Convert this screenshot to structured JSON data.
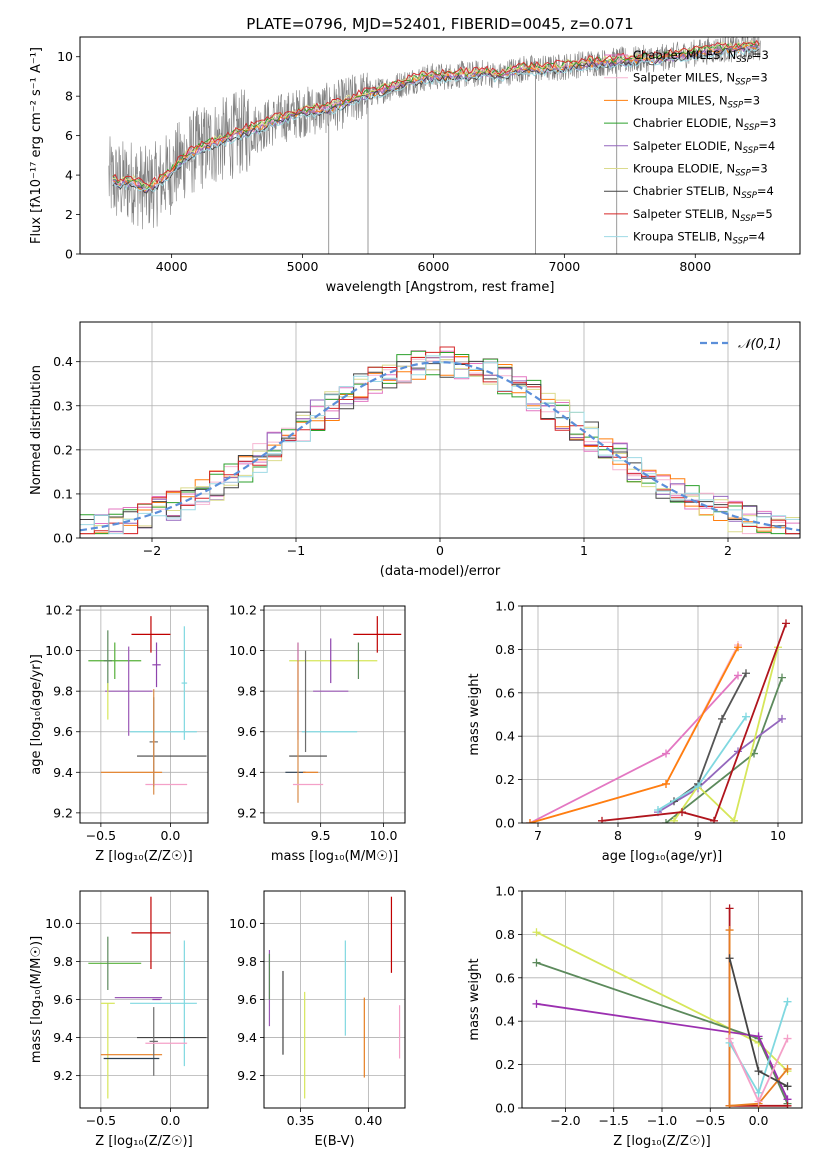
{
  "title": "PLATE=0796, MJD=52401, FIBERID=0045, z=0.071",
  "chart_data": [
    {
      "id": "spectrum",
      "type": "line",
      "xlabel": "wavelength [Angstrom, rest frame]",
      "ylabel": "Flux [fλ10⁻¹⁷ erg cm⁻² s⁻¹ A⁻¹]",
      "xlim": [
        3300,
        8800
      ],
      "ylim": [
        0,
        11
      ],
      "xticks": [
        4000,
        5000,
        6000,
        7000,
        8000
      ],
      "yticks": [
        0,
        2,
        4,
        6,
        8,
        10
      ],
      "grid": false,
      "legend_position": "right",
      "data_series": {
        "name": "data",
        "color": "#808080",
        "x": [
          3520,
          3600,
          3700,
          3800,
          3900,
          4000,
          4100,
          4200,
          4300,
          4400,
          4500,
          4600,
          4700,
          4800,
          4900,
          5000,
          5100,
          5200,
          5300,
          5400,
          5500,
          5600,
          5700,
          5800,
          5900,
          6000,
          6100,
          6200,
          6300,
          6400,
          6500,
          6600,
          6700,
          6800,
          6900,
          7000,
          7100,
          7200,
          7300,
          7400,
          7500,
          7600,
          7700,
          7800,
          7900,
          8000,
          8100,
          8200,
          8300,
          8400,
          8500
        ],
        "y": [
          3.8,
          3.6,
          3.7,
          3.3,
          3.6,
          4.2,
          4.9,
          5.3,
          5.6,
          5.8,
          6.1,
          6.3,
          6.5,
          6.8,
          7.0,
          7.2,
          7.3,
          7.4,
          7.6,
          7.9,
          8.1,
          8.3,
          8.5,
          8.7,
          8.9,
          9.0,
          9.0,
          9.1,
          9.1,
          9.2,
          9.0,
          9.3,
          9.4,
          9.4,
          9.4,
          9.5,
          9.6,
          9.7,
          9.7,
          9.8,
          9.8,
          9.9,
          9.9,
          10.0,
          10.1,
          10.2,
          10.3,
          10.4,
          10.4,
          10.5,
          10.5
        ]
      },
      "series": [
        {
          "name": "Chabrier MILES, N_SSP=3",
          "color": "#e377c2",
          "offset": 0.0
        },
        {
          "name": "Salpeter MILES, N_SSP=3",
          "color": "#f7b6d2",
          "offset": 0.05
        },
        {
          "name": "Kroupa MILES, N_SSP=3",
          "color": "#ff7f0e",
          "offset": -0.05
        },
        {
          "name": "Chabrier ELODIE, N_SSP=3",
          "color": "#2ca02c",
          "offset": 0.1
        },
        {
          "name": "Salpeter ELODIE, N_SSP=4",
          "color": "#9467bd",
          "offset": -0.1
        },
        {
          "name": "Kroupa ELODIE, N_SSP=3",
          "color": "#dbdb8d",
          "offset": 0.15
        },
        {
          "name": "Chabrier STELIB, N_SSP=4",
          "color": "#444444",
          "offset": -0.15
        },
        {
          "name": "Salpeter STELIB, N_SSP=5",
          "color": "#d62728",
          "offset": 0.2
        },
        {
          "name": "Kroupa STELIB, N_SSP=4",
          "color": "#9edae5",
          "offset": -0.2
        }
      ],
      "legend_labels": [
        {
          "main": "Chabrier MILES, N",
          "sub": "SSP",
          "val": "=3"
        },
        {
          "main": "Salpeter MILES, N",
          "sub": "SSP",
          "val": "=3"
        },
        {
          "main": "Kroupa MILES, N",
          "sub": "SSP",
          "val": "=3"
        },
        {
          "main": "Chabrier ELODIE, N",
          "sub": "SSP",
          "val": "=3"
        },
        {
          "main": "Salpeter ELODIE, N",
          "sub": "SSP",
          "val": "=4"
        },
        {
          "main": "Kroupa ELODIE, N",
          "sub": "SSP",
          "val": "=3"
        },
        {
          "main": "Chabrier STELIB, N",
          "sub": "SSP",
          "val": "=4"
        },
        {
          "main": "Salpeter STELIB, N",
          "sub": "SSP",
          "val": "=5"
        },
        {
          "main": "Kroupa STELIB, N",
          "sub": "SSP",
          "val": "=4"
        }
      ]
    },
    {
      "id": "residuals",
      "type": "histogram",
      "xlabel": "(data-model)/error",
      "ylabel": "Normed distribution",
      "xlim": [
        -2.5,
        2.5
      ],
      "ylim": [
        0,
        0.49
      ],
      "xticks": [
        -2,
        -1,
        0,
        1,
        2
      ],
      "yticks": [
        0.0,
        0.1,
        0.2,
        0.3,
        0.4
      ],
      "grid": true,
      "legend_position": "top-right",
      "reference_label": "𝒩(0,1)",
      "reference_color": "#5b8fd9"
    },
    {
      "id": "age-vs-Z",
      "type": "scatter",
      "xlabel": "Z [log₁₀(Z/Z☉)]",
      "ylabel": "age  [log₁₀(age/yr)]",
      "xlim": [
        -0.65,
        0.27
      ],
      "ylim": [
        9.15,
        10.22
      ],
      "xticks": [
        -0.5,
        0.0
      ],
      "yticks": [
        9.2,
        9.4,
        9.6,
        9.8,
        10.0,
        10.2
      ],
      "grid": true,
      "points": [
        {
          "x": -0.14,
          "y": 10.08,
          "xerr": 0.14,
          "yerr": 0.09,
          "color": "#c00000"
        },
        {
          "x": -0.4,
          "y": 9.95,
          "xerr": 0.19,
          "yerr": 0.09,
          "color": "#56b03a"
        },
        {
          "x": -0.1,
          "y": 9.93,
          "xerr": 0.03,
          "yerr": 0.11,
          "color": "#8e44ad"
        },
        {
          "x": 0.1,
          "y": 9.84,
          "xerr": 0.02,
          "yerr": 0.28,
          "color": "#80d8e0"
        },
        {
          "x": -0.3,
          "y": 9.8,
          "xerr": 0.17,
          "yerr": 0.22,
          "color": "#9b59b6"
        },
        {
          "x": -0.45,
          "y": 9.95,
          "xerr": 0.03,
          "yerr": 0.15,
          "color": "#5c8a5c"
        },
        {
          "x": -0.05,
          "y": 9.6,
          "xerr": 0.24,
          "yerr": 0.0,
          "color": "#80d8e0"
        },
        {
          "x": 0.01,
          "y": 9.48,
          "xerr": 0.25,
          "yerr": 0.0,
          "color": "#444444"
        },
        {
          "x": -0.28,
          "y": 9.4,
          "xerr": 0.22,
          "yerr": 0.0,
          "color": "#e67e22"
        },
        {
          "x": -0.12,
          "y": 9.55,
          "xerr": 0.03,
          "yerr": 0.22,
          "color": "#6d6d6d"
        },
        {
          "x": -0.03,
          "y": 9.34,
          "xerr": 0.15,
          "yerr": 0.0,
          "color": "#f4a0c8"
        },
        {
          "x": -0.12,
          "y": 9.55,
          "xerr": 0.01,
          "yerr": 0.26,
          "color": "#d98c4a"
        },
        {
          "x": -0.45,
          "y": 9.75,
          "xerr": 0.0,
          "yerr": 0.09,
          "color": "#d6e65a"
        }
      ]
    },
    {
      "id": "age-vs-mass",
      "type": "scatter",
      "xlabel": "mass [log₁₀(M/M☉)]",
      "ylabel": "",
      "xlim": [
        9.05,
        10.17
      ],
      "ylim": [
        9.15,
        10.22
      ],
      "xticks": [
        9.5,
        10.0
      ],
      "yticks": [
        9.2,
        9.4,
        9.6,
        9.8,
        10.0,
        10.2
      ],
      "grid": true,
      "points": [
        {
          "x": 9.95,
          "y": 10.08,
          "xerr": 0.19,
          "yerr": 0.09,
          "color": "#c00000"
        },
        {
          "x": 9.6,
          "y": 9.95,
          "xerr": 0.35,
          "yerr": 0.0,
          "color": "#d6e65a"
        },
        {
          "x": 9.8,
          "y": 9.95,
          "xerr": 0.0,
          "yerr": 0.09,
          "color": "#5c8a5c"
        },
        {
          "x": 9.58,
          "y": 9.95,
          "xerr": 0.0,
          "yerr": 0.11,
          "color": "#8e44ad"
        },
        {
          "x": 9.58,
          "y": 9.8,
          "xerr": 0.14,
          "yerr": 0.0,
          "color": "#9b59b6"
        },
        {
          "x": 9.32,
          "y": 9.8,
          "xerr": 0.0,
          "yerr": 0.24,
          "color": "#c26a9f"
        },
        {
          "x": 9.57,
          "y": 9.6,
          "xerr": 0.22,
          "yerr": 0.0,
          "color": "#80d8e0"
        },
        {
          "x": 9.4,
          "y": 9.48,
          "xerr": 0.15,
          "yerr": 0.0,
          "color": "#444444"
        },
        {
          "x": 9.3,
          "y": 9.4,
          "xerr": 0.08,
          "yerr": 0.0,
          "color": "#2c3e50"
        },
        {
          "x": 9.42,
          "y": 9.4,
          "xerr": 0.06,
          "yerr": 0.0,
          "color": "#e67e22"
        },
        {
          "x": 9.32,
          "y": 9.6,
          "xerr": 0.0,
          "yerr": 0.35,
          "color": "#d98c4a"
        },
        {
          "x": 9.4,
          "y": 9.34,
          "xerr": 0.12,
          "yerr": 0.0,
          "color": "#f4a0c8"
        },
        {
          "x": 9.38,
          "y": 9.75,
          "xerr": 0.0,
          "yerr": 0.25,
          "color": "#6d6d6d"
        }
      ]
    },
    {
      "id": "weight-vs-age",
      "type": "line",
      "xlabel": "age  [log₁₀(age/yr)]",
      "ylabel": "mass weight",
      "xlim": [
        6.8,
        10.3
      ],
      "ylim": [
        0,
        1.0
      ],
      "xticks": [
        7,
        8,
        9,
        10
      ],
      "yticks": [
        0.0,
        0.2,
        0.4,
        0.6,
        0.8,
        1.0
      ],
      "grid": true,
      "series": [
        {
          "name": "s1",
          "color": "#e377c2",
          "x": [
            6.9,
            8.6,
            9.5
          ],
          "y": [
            0.0,
            0.32,
            0.68
          ]
        },
        {
          "name": "s2",
          "color": "#f7b6d2",
          "x": [
            6.9,
            8.6,
            9.5
          ],
          "y": [
            0.0,
            0.18,
            0.82
          ]
        },
        {
          "name": "s3",
          "color": "#ff7f0e",
          "x": [
            6.9,
            8.6,
            9.5
          ],
          "y": [
            0.0,
            0.18,
            0.81
          ]
        },
        {
          "name": "s4",
          "color": "#5c8a5c",
          "x": [
            8.6,
            9.7,
            10.05
          ],
          "y": [
            0.0,
            0.32,
            0.67
          ]
        },
        {
          "name": "s5",
          "color": "#9467bd",
          "x": [
            8.5,
            9.0,
            9.5,
            10.05
          ],
          "y": [
            0.05,
            0.16,
            0.33,
            0.48
          ]
        },
        {
          "name": "s6",
          "color": "#d6e65a",
          "x": [
            8.7,
            9.0,
            9.45,
            10.0
          ],
          "y": [
            0.01,
            0.17,
            0.01,
            0.81
          ]
        },
        {
          "name": "s7",
          "color": "#555555",
          "x": [
            8.7,
            9.0,
            9.3,
            9.6
          ],
          "y": [
            0.1,
            0.18,
            0.48,
            0.69
          ]
        },
        {
          "name": "s8",
          "color": "#b0151d",
          "x": [
            7.8,
            8.8,
            9.2,
            10.1
          ],
          "y": [
            0.01,
            0.05,
            0.01,
            0.92
          ]
        },
        {
          "name": "s9",
          "color": "#80d8e0",
          "x": [
            8.5,
            9.0,
            9.6
          ],
          "y": [
            0.06,
            0.17,
            0.49
          ]
        }
      ]
    },
    {
      "id": "mass-vs-Z",
      "type": "scatter",
      "xlabel": "Z [log₁₀(Z/Z☉)]",
      "ylabel": "mass [log₁₀(M/M☉)]",
      "xlim": [
        -0.65,
        0.27
      ],
      "ylim": [
        9.03,
        10.17
      ],
      "xticks": [
        -0.5,
        0.0
      ],
      "yticks": [
        9.2,
        9.4,
        9.6,
        9.8,
        10.0
      ],
      "grid": true,
      "points": [
        {
          "x": -0.14,
          "y": 9.95,
          "xerr": 0.14,
          "yerr": 0.19,
          "color": "#c00000"
        },
        {
          "x": -0.4,
          "y": 9.79,
          "xerr": 0.19,
          "yerr": 0.0,
          "color": "#56b03a"
        },
        {
          "x": -0.45,
          "y": 9.79,
          "xerr": 0.0,
          "yerr": 0.14,
          "color": "#5c8a5c"
        },
        {
          "x": -0.23,
          "y": 9.61,
          "xerr": 0.17,
          "yerr": 0.0,
          "color": "#9b59b6"
        },
        {
          "x": -0.1,
          "y": 9.6,
          "xerr": 0.03,
          "yerr": 0.0,
          "color": "#8e44ad"
        },
        {
          "x": 0.1,
          "y": 9.58,
          "xerr": 0.0,
          "yerr": 0.33,
          "color": "#80d8e0"
        },
        {
          "x": -0.05,
          "y": 9.58,
          "xerr": 0.24,
          "yerr": 0.0,
          "color": "#80d8e0"
        },
        {
          "x": -0.45,
          "y": 9.33,
          "xerr": 0.0,
          "yerr": 0.25,
          "color": "#d6e65a"
        },
        {
          "x": -0.45,
          "y": 9.58,
          "xerr": 0.05,
          "yerr": 0.0,
          "color": "#d6e65a"
        },
        {
          "x": 0.01,
          "y": 9.4,
          "xerr": 0.25,
          "yerr": 0.0,
          "color": "#444444"
        },
        {
          "x": -0.28,
          "y": 9.31,
          "xerr": 0.22,
          "yerr": 0.0,
          "color": "#e67e22"
        },
        {
          "x": -0.12,
          "y": 9.38,
          "xerr": 0.03,
          "yerr": 0.18,
          "color": "#6d6d6d"
        },
        {
          "x": -0.03,
          "y": 9.37,
          "xerr": 0.15,
          "yerr": 0.0,
          "color": "#f4a0c8"
        },
        {
          "x": -0.28,
          "y": 9.29,
          "xerr": 0.2,
          "yerr": 0.0,
          "color": "#2c3e50"
        }
      ]
    },
    {
      "id": "mass-vs-EBV",
      "type": "scatter",
      "xlabel": "E(B-V)",
      "ylabel": "",
      "xlim": [
        0.323,
        0.427
      ],
      "ylim": [
        9.03,
        10.17
      ],
      "xticks": [
        0.35,
        0.4
      ],
      "yticks": [
        9.2,
        9.4,
        9.6,
        9.8,
        10.0
      ],
      "grid": true,
      "points": [
        {
          "x": 0.417,
          "y": 9.94,
          "xerr": 0.0,
          "yerr": 0.2,
          "color": "#c00000"
        },
        {
          "x": 0.327,
          "y": 9.66,
          "xerr": 0.0,
          "yerr": 0.2,
          "color": "#9b59b6"
        },
        {
          "x": 0.327,
          "y": 9.72,
          "xerr": 0.0,
          "yerr": 0.12,
          "color": "#5c8a5c"
        },
        {
          "x": 0.337,
          "y": 9.53,
          "xerr": 0.0,
          "yerr": 0.22,
          "color": "#444444"
        },
        {
          "x": 0.353,
          "y": 9.36,
          "xerr": 0.0,
          "yerr": 0.28,
          "color": "#d6e65a"
        },
        {
          "x": 0.383,
          "y": 9.66,
          "xerr": 0.0,
          "yerr": 0.25,
          "color": "#80d8e0"
        },
        {
          "x": 0.397,
          "y": 9.4,
          "xerr": 0.0,
          "yerr": 0.21,
          "color": "#e67e22"
        },
        {
          "x": 0.423,
          "y": 9.43,
          "xerr": 0.0,
          "yerr": 0.14,
          "color": "#f4a0c8"
        }
      ]
    },
    {
      "id": "weight-vs-Z",
      "type": "line",
      "xlabel": "Z [log₁₀(Z/Z☉)]",
      "ylabel": "mass weight",
      "xlim": [
        -2.45,
        0.45
      ],
      "ylim": [
        0,
        1.0
      ],
      "xticks": [
        -2.0,
        -1.5,
        -1.0,
        -0.5,
        0.0
      ],
      "yticks": [
        0.0,
        0.2,
        0.4,
        0.6,
        0.8,
        1.0
      ],
      "grid": true,
      "series": [
        {
          "name": "w1",
          "color": "#d6e65a",
          "x": [
            -2.3,
            0.0,
            0.3
          ],
          "y": [
            0.81,
            0.3,
            0.17
          ]
        },
        {
          "name": "w2",
          "color": "#5c8a5c",
          "x": [
            -2.3,
            0.0,
            0.3
          ],
          "y": [
            0.67,
            0.32,
            0.02
          ]
        },
        {
          "name": "w3",
          "color": "#9b30b0",
          "x": [
            -2.3,
            0.0,
            0.3
          ],
          "y": [
            0.48,
            0.33,
            0.04
          ]
        },
        {
          "name": "w4",
          "color": "#b0151d",
          "x": [
            -0.3,
            -0.3,
            0.0,
            0.3
          ],
          "y": [
            0.92,
            0.01,
            0.01,
            0.01
          ]
        },
        {
          "name": "w5",
          "color": "#e67e22",
          "x": [
            -0.3,
            -0.3,
            0.0,
            0.3
          ],
          "y": [
            0.82,
            0.01,
            0.02,
            0.18
          ]
        },
        {
          "name": "w6",
          "color": "#80d8e0",
          "x": [
            -0.3,
            0.0,
            0.3
          ],
          "y": [
            0.3,
            0.07,
            0.49
          ]
        },
        {
          "name": "w7",
          "color": "#444444",
          "x": [
            -0.3,
            0.0,
            0.3
          ],
          "y": [
            0.69,
            0.17,
            0.1
          ]
        },
        {
          "name": "w8",
          "color": "#f4a0c8",
          "x": [
            -0.3,
            0.0,
            0.3
          ],
          "y": [
            0.32,
            0.03,
            0.32
          ]
        }
      ]
    }
  ]
}
